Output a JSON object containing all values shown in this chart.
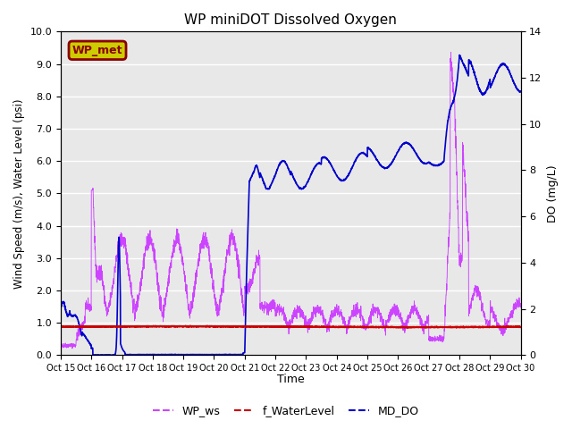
{
  "title": "WP miniDOT Dissolved Oxygen",
  "xlabel": "Time",
  "ylabel_left": "Wind Speed (m/s), Water Level (psi)",
  "ylabel_right": "DO (mg/L)",
  "xlim": [
    0,
    15
  ],
  "ylim_left": [
    0.0,
    10.0
  ],
  "ylim_right": [
    0,
    14
  ],
  "yticks_left": [
    0.0,
    1.0,
    2.0,
    3.0,
    4.0,
    5.0,
    6.0,
    7.0,
    8.0,
    9.0,
    10.0
  ],
  "yticks_right": [
    0,
    2,
    4,
    6,
    8,
    10,
    12,
    14
  ],
  "xtick_labels": [
    "Oct 15",
    "Oct 16",
    "Oct 17",
    "Oct 18",
    "Oct 19",
    "Oct 20",
    "Oct 21",
    "Oct 22",
    "Oct 23",
    "Oct 24",
    "Oct 25",
    "Oct 26",
    "Oct 27",
    "Oct 28",
    "Oct 29",
    "Oct 30"
  ],
  "bg_color": "#e8e8e8",
  "legend_box_bg": "#cccc00",
  "legend_box_edge": "#8b0000",
  "legend_box_text": "WP_met",
  "legend_box_text_color": "#8b0000",
  "color_wp_ws": "#cc44ff",
  "color_water_level": "#cc0000",
  "color_md_do": "#0000cc",
  "grid_color": "#ffffff",
  "title_fontsize": 11
}
